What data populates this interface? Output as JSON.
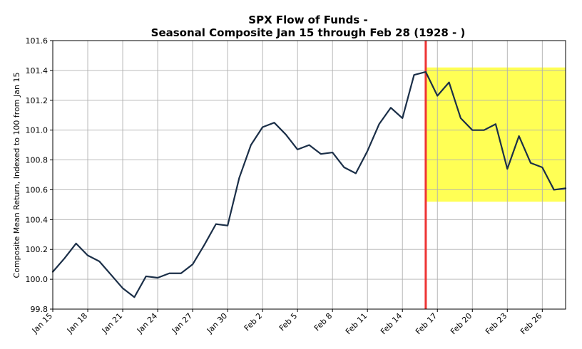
{
  "chart_data": {
    "type": "line",
    "title": "SPX Flow of Funds -",
    "subtitle": "Seasonal Composite Jan 15 through Feb 28 (1928 - )",
    "xlabel": "",
    "ylabel": "Composite Mean Return, Indexed to 100 from Jan 15",
    "ylim": [
      99.8,
      101.6
    ],
    "yticks": [
      "99.8",
      "100.0",
      "100.2",
      "100.4",
      "100.6",
      "100.8",
      "101.0",
      "101.2",
      "101.4",
      "101.6"
    ],
    "xticks": [
      "Jan 15",
      "Jan 18",
      "Jan 21",
      "Jan 24",
      "Jan 27",
      "Jan 30",
      "Feb 2",
      "Feb 5",
      "Feb 8",
      "Feb 11",
      "Feb 14",
      "Feb 17",
      "Feb 20",
      "Feb 23",
      "Feb 26"
    ],
    "grid": true,
    "x": [
      "Jan 15",
      "Jan 16",
      "Jan 17",
      "Jan 18",
      "Jan 19",
      "Jan 20",
      "Jan 21",
      "Jan 22",
      "Jan 23",
      "Jan 24",
      "Jan 25",
      "Jan 26",
      "Jan 27",
      "Jan 28",
      "Jan 29",
      "Jan 30",
      "Jan 31",
      "Feb 1",
      "Feb 2",
      "Feb 3",
      "Feb 4",
      "Feb 5",
      "Feb 6",
      "Feb 7",
      "Feb 8",
      "Feb 9",
      "Feb 10",
      "Feb 11",
      "Feb 12",
      "Feb 13",
      "Feb 14",
      "Feb 15",
      "Feb 16",
      "Feb 17",
      "Feb 18",
      "Feb 19",
      "Feb 20",
      "Feb 21",
      "Feb 22",
      "Feb 23",
      "Feb 24",
      "Feb 25",
      "Feb 26",
      "Feb 27",
      "Feb 28"
    ],
    "series": [
      {
        "values": [
          100.05,
          100.14,
          100.24,
          100.16,
          100.12,
          100.03,
          99.94,
          99.88,
          100.02,
          100.01,
          100.04,
          100.04,
          100.1,
          100.23,
          100.37,
          100.36,
          100.68,
          100.9,
          101.02,
          101.05,
          100.97,
          100.87,
          100.9,
          100.84,
          100.85,
          100.75,
          100.71,
          100.86,
          101.04,
          101.15,
          101.08,
          101.37,
          101.39,
          101.23,
          101.32,
          101.08,
          101.0,
          101.0,
          101.04,
          100.74,
          100.96,
          100.78,
          100.75,
          100.6,
          100.61
        ],
        "color": "#1b2f48"
      }
    ],
    "vline": {
      "at": "Feb 16",
      "color": "#ee3333"
    },
    "highlight": {
      "x_from": "Feb 16",
      "x_to": "Feb 28",
      "y_from": 100.52,
      "y_to": 101.42,
      "color": "#ffff55"
    }
  }
}
